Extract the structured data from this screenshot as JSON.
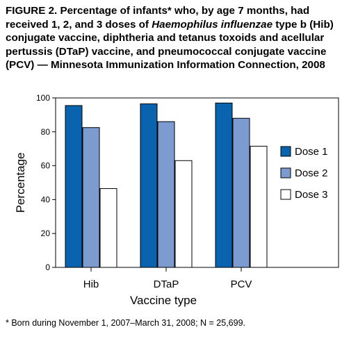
{
  "figure": {
    "title_parts": [
      "FIGURE 2. Percentage of infants* who, by age 7 months, had received 1, 2, and 3 doses of ",
      "Haemophilus influenzae",
      " type b (Hib) conjugate vaccine, diphtheria and tetanus toxoids and acellular pertussis (DTaP) vaccine, and pneumococcal conjugate vaccine (PCV) — Minnesota Immunization Information Connection, 2008"
    ],
    "footnote": "* Born during November 1, 2007–March 31, 2008; N = 25,699."
  },
  "chart_data": {
    "type": "bar",
    "title": "FIGURE 2. Percentage of infants* who, by age 7 months, had received 1, 2, and 3 doses of Haemophilus influenzae type b (Hib) conjugate vaccine, diphtheria and tetanus toxoids and acellular pertussis (DTaP) vaccine, and pneumococcal conjugate vaccine (PCV) — Minnesota Immunization Information Connection, 2008",
    "xlabel": "Vaccine type",
    "ylabel": "Percentage",
    "categories": [
      "Hib",
      "DTaP",
      "PCV"
    ],
    "ylim": [
      0,
      100
    ],
    "yticks": [
      0,
      20,
      40,
      60,
      80,
      100
    ],
    "grid": false,
    "legend_position": "right",
    "series": [
      {
        "name": "Dose 1",
        "color": "#0a63ae",
        "values": [
          95.5,
          96.5,
          97
        ]
      },
      {
        "name": "Dose 2",
        "color": "#7b9bd1",
        "values": [
          82.5,
          86,
          88
        ]
      },
      {
        "name": "Dose 3",
        "color": "#ffffff",
        "values": [
          46.5,
          63,
          71.5
        ]
      }
    ]
  }
}
